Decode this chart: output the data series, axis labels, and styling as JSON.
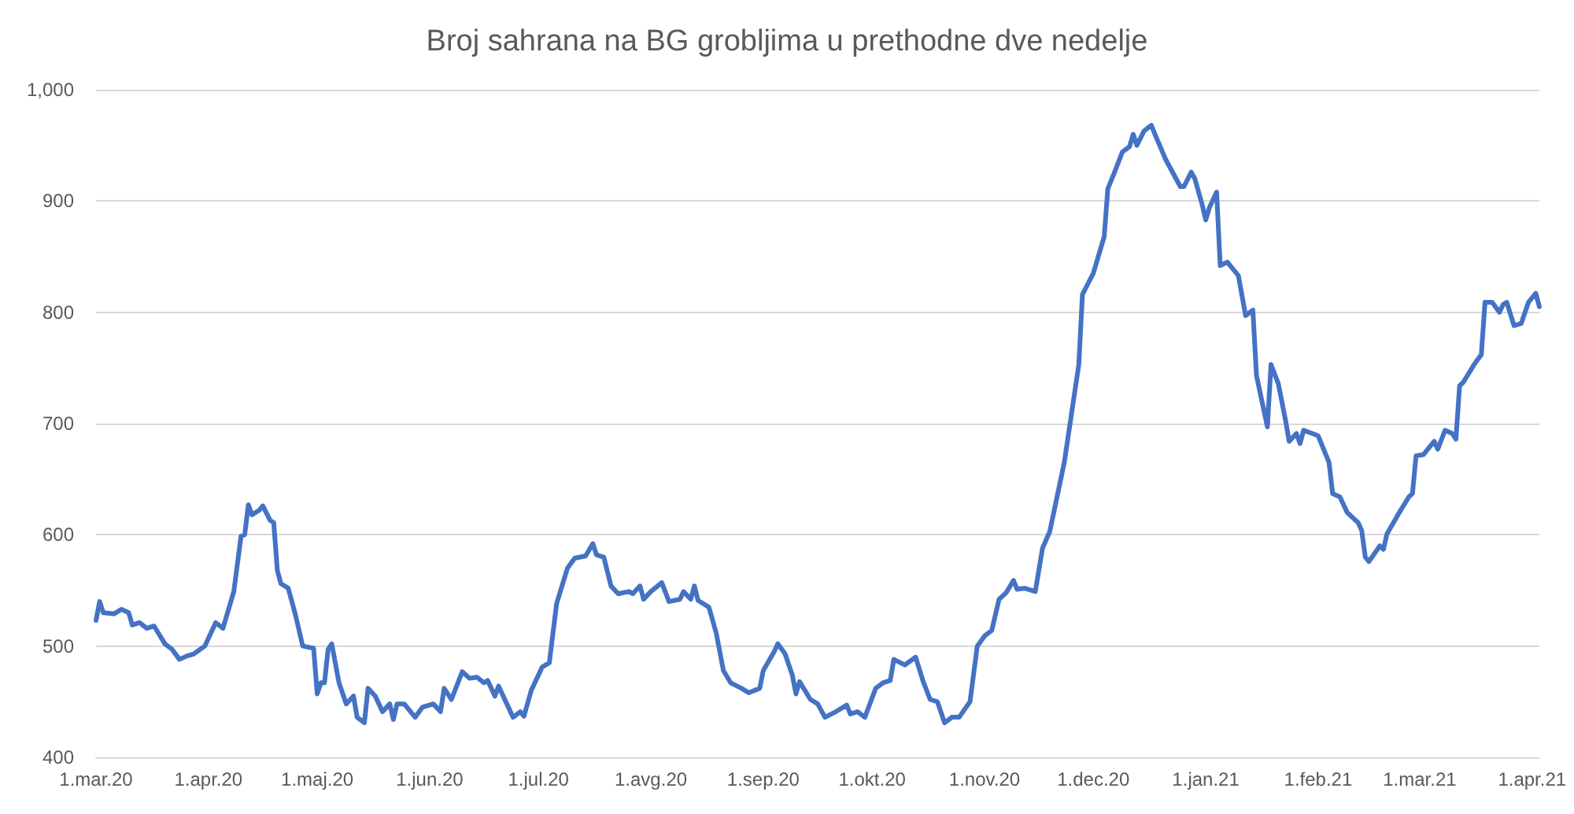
{
  "chart_data": {
    "type": "line",
    "title": "Broj sahrana na BG grobljima u prethodne dve nedelje",
    "x": [
      "2020-03-01",
      "2020-03-02",
      "2020-03-03",
      "2020-03-06",
      "2020-03-08",
      "2020-03-10",
      "2020-03-11",
      "2020-03-13",
      "2020-03-15",
      "2020-03-17",
      "2020-03-20",
      "2020-03-22",
      "2020-03-24",
      "2020-03-26",
      "2020-03-28",
      "2020-03-31",
      "2020-04-03",
      "2020-04-05",
      "2020-04-08",
      "2020-04-10",
      "2020-04-11",
      "2020-04-12",
      "2020-04-13",
      "2020-04-15",
      "2020-04-16",
      "2020-04-18",
      "2020-04-19",
      "2020-04-20",
      "2020-04-21",
      "2020-04-23",
      "2020-04-24",
      "2020-04-25",
      "2020-04-27",
      "2020-04-30",
      "2020-05-01",
      "2020-05-02",
      "2020-05-03",
      "2020-05-04",
      "2020-05-05",
      "2020-05-07",
      "2020-05-09",
      "2020-05-11",
      "2020-05-12",
      "2020-05-14",
      "2020-05-15",
      "2020-05-17",
      "2020-05-19",
      "2020-05-21",
      "2020-05-22",
      "2020-05-23",
      "2020-05-25",
      "2020-05-28",
      "2020-05-30",
      "2020-06-02",
      "2020-06-04",
      "2020-06-05",
      "2020-06-07",
      "2020-06-10",
      "2020-06-12",
      "2020-06-14",
      "2020-06-16",
      "2020-06-17",
      "2020-06-19",
      "2020-06-20",
      "2020-06-24",
      "2020-06-26",
      "2020-06-27",
      "2020-06-29",
      "2020-07-02",
      "2020-07-04",
      "2020-07-06",
      "2020-07-09",
      "2020-07-11",
      "2020-07-14",
      "2020-07-16",
      "2020-07-17",
      "2020-07-19",
      "2020-07-21",
      "2020-07-23",
      "2020-07-26",
      "2020-07-27",
      "2020-07-29",
      "2020-07-30",
      "2020-08-01",
      "2020-08-04",
      "2020-08-06",
      "2020-08-09",
      "2020-08-10",
      "2020-08-12",
      "2020-08-13",
      "2020-08-14",
      "2020-08-17",
      "2020-08-19",
      "2020-08-21",
      "2020-08-23",
      "2020-08-26",
      "2020-08-28",
      "2020-08-31",
      "2020-09-01",
      "2020-09-04",
      "2020-09-05",
      "2020-09-07",
      "2020-09-09",
      "2020-09-10",
      "2020-09-11",
      "2020-09-14",
      "2020-09-16",
      "2020-09-18",
      "2020-09-21",
      "2020-09-24",
      "2020-09-25",
      "2020-09-27",
      "2020-09-29",
      "2020-10-02",
      "2020-10-04",
      "2020-10-06",
      "2020-10-07",
      "2020-10-10",
      "2020-10-13",
      "2020-10-15",
      "2020-10-17",
      "2020-10-19",
      "2020-10-21",
      "2020-10-23",
      "2020-10-25",
      "2020-10-28",
      "2020-10-30",
      "2020-11-01",
      "2020-11-03",
      "2020-11-05",
      "2020-11-07",
      "2020-11-09",
      "2020-11-10",
      "2020-11-12",
      "2020-11-15",
      "2020-11-17",
      "2020-11-19",
      "2020-11-23",
      "2020-11-27",
      "2020-11-28",
      "2020-12-01",
      "2020-12-04",
      "2020-12-05",
      "2020-12-07",
      "2020-12-09",
      "2020-12-11",
      "2020-12-12",
      "2020-12-13",
      "2020-12-15",
      "2020-12-17",
      "2020-12-18",
      "2020-12-21",
      "2020-12-25",
      "2020-12-26",
      "2020-12-28",
      "2020-12-29",
      "2020-12-31",
      "2021-01-01",
      "2021-01-02",
      "2021-01-04",
      "2021-01-05",
      "2021-01-07",
      "2021-01-10",
      "2021-01-12",
      "2021-01-14",
      "2021-01-15",
      "2021-01-18",
      "2021-01-19",
      "2021-01-21",
      "2021-01-23",
      "2021-01-24",
      "2021-01-26",
      "2021-01-27",
      "2021-01-28",
      "2021-02-01",
      "2021-02-04",
      "2021-02-05",
      "2021-02-07",
      "2021-02-09",
      "2021-02-12",
      "2021-02-13",
      "2021-02-14",
      "2021-02-15",
      "2021-02-18",
      "2021-02-19",
      "2021-02-20",
      "2021-02-23",
      "2021-02-26",
      "2021-02-27",
      "2021-02-28",
      "2021-03-02",
      "2021-03-05",
      "2021-03-06",
      "2021-03-08",
      "2021-03-10",
      "2021-03-11",
      "2021-03-12",
      "2021-03-13",
      "2021-03-16",
      "2021-03-18",
      "2021-03-19",
      "2021-03-21",
      "2021-03-23",
      "2021-03-24",
      "2021-03-25",
      "2021-03-27",
      "2021-03-29",
      "2021-03-31",
      "2021-04-02",
      "2021-04-03"
    ],
    "series": [
      {
        "color": "#4472c4",
        "values": [
          523,
          540,
          530,
          529,
          533,
          530,
          519,
          521,
          516,
          518,
          502,
          497,
          488,
          491,
          493,
          500,
          521,
          516,
          549,
          599,
          600,
          627,
          618,
          622,
          626,
          613,
          611,
          568,
          556,
          552,
          540,
          528,
          500,
          498,
          457,
          467,
          467,
          497,
          502,
          467,
          448,
          455,
          436,
          431,
          462,
          455,
          441,
          448,
          434,
          448,
          448,
          436,
          445,
          448,
          441,
          462,
          452,
          477,
          471,
          472,
          467,
          469,
          455,
          464,
          436,
          441,
          437,
          460,
          481,
          485,
          538,
          570,
          579,
          581,
          592,
          582,
          580,
          554,
          547,
          549,
          547,
          554,
          542,
          549,
          557,
          540,
          542,
          549,
          542,
          554,
          541,
          535,
          512,
          478,
          467,
          462,
          458,
          462,
          478,
          495,
          502,
          493,
          474,
          457,
          468,
          452,
          448,
          436,
          441,
          447,
          439,
          441,
          436,
          462,
          467,
          469,
          488,
          483,
          490,
          469,
          452,
          450,
          431,
          436,
          436,
          450,
          500,
          509,
          514,
          542,
          548,
          559,
          551,
          552,
          549,
          588,
          603,
          665,
          753,
          816,
          835,
          868,
          911,
          927,
          944,
          949,
          960,
          950,
          963,
          968,
          960,
          937,
          913,
          913,
          926,
          920,
          897,
          883,
          894,
          908,
          842,
          845,
          833,
          797,
          802,
          743,
          697,
          753,
          736,
          703,
          684,
          691,
          682,
          694,
          689,
          665,
          637,
          634,
          620,
          611,
          604,
          580,
          576,
          590,
          587,
          601,
          618,
          634,
          637,
          671,
          672,
          684,
          677,
          694,
          691,
          686,
          734,
          737,
          753,
          762,
          809,
          809,
          800,
          807,
          809,
          788,
          790,
          809,
          817,
          805
        ]
      }
    ],
    "xlim": [
      "2020-03-01",
      "2021-04-03"
    ],
    "xticks": [
      {
        "value": "2020-03-01",
        "label": "1.mar.20"
      },
      {
        "value": "2020-04-01",
        "label": "1.apr.20"
      },
      {
        "value": "2020-05-01",
        "label": "1.maj.20"
      },
      {
        "value": "2020-06-01",
        "label": "1.jun.20"
      },
      {
        "value": "2020-07-01",
        "label": "1.jul.20"
      },
      {
        "value": "2020-08-01",
        "label": "1.avg.20"
      },
      {
        "value": "2020-09-01",
        "label": "1.sep.20"
      },
      {
        "value": "2020-10-01",
        "label": "1.okt.20"
      },
      {
        "value": "2020-11-01",
        "label": "1.nov.20"
      },
      {
        "value": "2020-12-01",
        "label": "1.dec.20"
      },
      {
        "value": "2021-01-01",
        "label": "1.jan.21"
      },
      {
        "value": "2021-02-01",
        "label": "1.feb.21"
      },
      {
        "value": "2021-03-01",
        "label": "1.mar.21"
      },
      {
        "value": "2021-04-01",
        "label": "1.apr.21"
      }
    ],
    "ylim": [
      400,
      1000
    ],
    "yticks": [
      400,
      500,
      600,
      700,
      800,
      900,
      {
        "value": 1000,
        "label": "1,000"
      }
    ],
    "grid": "y",
    "marker": "none",
    "line_style": "solid"
  }
}
